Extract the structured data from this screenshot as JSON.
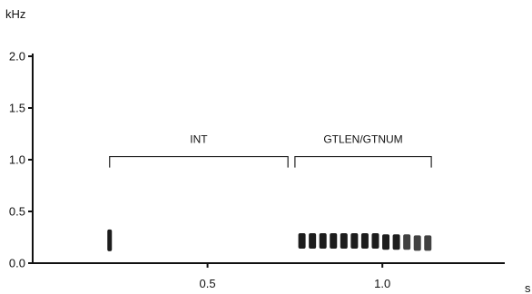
{
  "chart_data": {
    "type": "scatter",
    "xlabel": "s",
    "ylabel": "kHz",
    "xlim": [
      0.0,
      1.35
    ],
    "ylim": [
      0.0,
      2.0
    ],
    "x_ticks": [
      0.5,
      1.0
    ],
    "x_tick_labels": [
      "0.5",
      "1.0"
    ],
    "y_ticks": [
      0.0,
      0.5,
      1.0,
      1.5,
      2.0
    ],
    "y_tick_labels": [
      "0.0",
      "0.5",
      "1.0",
      "1.5",
      "2.0"
    ],
    "grid": false,
    "legend": false,
    "mark_color": "#111111",
    "annotations": [
      {
        "label": "INT",
        "x_start": 0.22,
        "x_end": 0.73,
        "y": 1.03
      },
      {
        "label": "GTLEN/GTNUM",
        "x_start": 0.75,
        "x_end": 1.14,
        "y": 1.03
      }
    ],
    "notes_x": [
      0.22,
      0.77,
      0.8,
      0.83,
      0.86,
      0.89,
      0.92,
      0.95,
      0.98,
      1.01,
      1.04,
      1.07,
      1.1,
      1.13
    ],
    "notes_y": [
      0.22,
      0.21,
      0.21,
      0.21,
      0.21,
      0.21,
      0.21,
      0.21,
      0.21,
      0.2,
      0.2,
      0.2,
      0.19,
      0.19
    ]
  }
}
